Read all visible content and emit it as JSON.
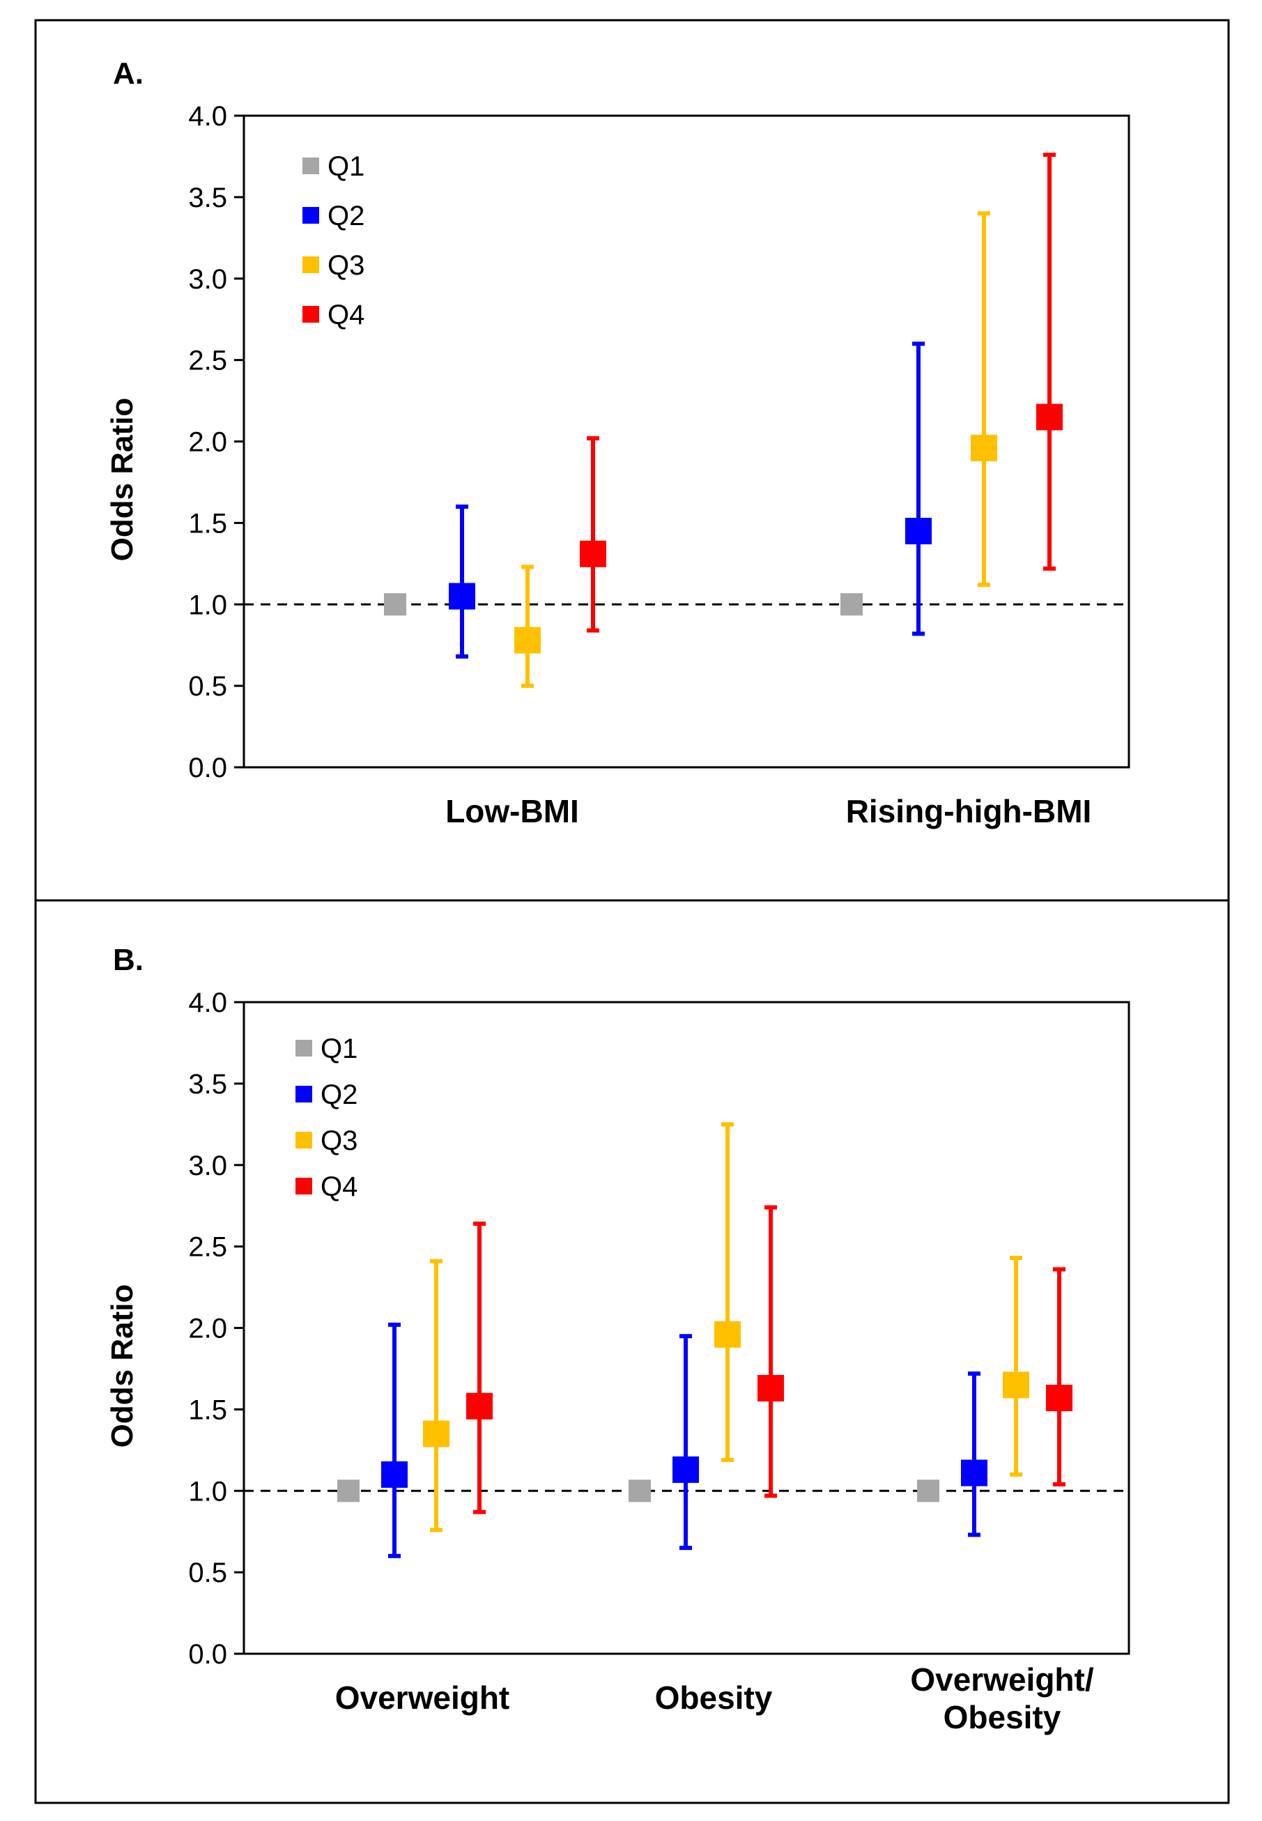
{
  "chart_data": [
    {
      "type": "scatter",
      "panel_label": "A.",
      "ylabel": "Odds Ratio",
      "ylim": [
        0,
        4
      ],
      "yticks": [
        "0.0",
        "0.5",
        "1.0",
        "1.5",
        "2.0",
        "2.5",
        "3.0",
        "3.5",
        "4.0"
      ],
      "reference_line": 1.0,
      "legend_position": "top-left",
      "categories": [
        "Low-BMI",
        "Rising-high-BMI"
      ],
      "series": [
        {
          "name": "Q1",
          "color": "#a6a6a6",
          "values": [
            1.0,
            1.0
          ],
          "lower": [
            null,
            null
          ],
          "upper": [
            null,
            null
          ]
        },
        {
          "name": "Q2",
          "color": "#0000ff",
          "values": [
            1.05,
            1.45
          ],
          "lower": [
            0.68,
            0.82
          ],
          "upper": [
            1.6,
            2.6
          ]
        },
        {
          "name": "Q3",
          "color": "#ffc000",
          "values": [
            0.78,
            1.96
          ],
          "lower": [
            0.5,
            1.12
          ],
          "upper": [
            1.23,
            3.4
          ]
        },
        {
          "name": "Q4",
          "color": "#ff0000",
          "values": [
            1.31,
            2.15
          ],
          "lower": [
            0.84,
            1.22
          ],
          "upper": [
            2.02,
            3.76
          ]
        }
      ]
    },
    {
      "type": "scatter",
      "panel_label": "B.",
      "ylabel": "Odds Ratio",
      "ylim": [
        0,
        4
      ],
      "yticks": [
        "0.0",
        "0.5",
        "1.0",
        "1.5",
        "2.0",
        "2.5",
        "3.0",
        "3.5",
        "4.0"
      ],
      "reference_line": 1.0,
      "legend_position": "top-left",
      "categories": [
        "Overweight",
        "Obesity",
        "Overweight/\nObesity"
      ],
      "series": [
        {
          "name": "Q1",
          "color": "#a6a6a6",
          "values": [
            1.0,
            1.0,
            1.0
          ],
          "lower": [
            null,
            null,
            null
          ],
          "upper": [
            null,
            null,
            null
          ]
        },
        {
          "name": "Q2",
          "color": "#0000ff",
          "values": [
            1.1,
            1.13,
            1.11
          ],
          "lower": [
            0.6,
            0.65,
            0.73
          ],
          "upper": [
            2.02,
            1.95,
            1.72
          ]
        },
        {
          "name": "Q3",
          "color": "#ffc000",
          "values": [
            1.35,
            1.96,
            1.65
          ],
          "lower": [
            0.76,
            1.19,
            1.1
          ],
          "upper": [
            2.41,
            3.25,
            2.43
          ]
        },
        {
          "name": "Q4",
          "color": "#ff0000",
          "values": [
            1.52,
            1.63,
            1.57
          ],
          "lower": [
            0.87,
            0.97,
            1.04
          ],
          "upper": [
            2.64,
            2.74,
            2.36
          ]
        }
      ]
    }
  ]
}
